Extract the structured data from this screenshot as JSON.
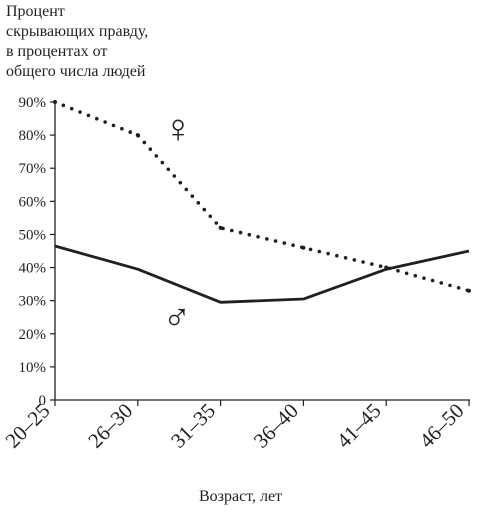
{
  "chart_data": {
    "type": "line",
    "ylabel": "Процент\nскрывающих правду,\nв процентах от\nобщего числа людей",
    "xlabel": "Возраст, лет",
    "categories": [
      "20–25",
      "26–30",
      "31–35",
      "36–40",
      "41–45",
      "46–50"
    ],
    "y_ticks": [
      "0",
      "10%",
      "20%",
      "30%",
      "40%",
      "50%",
      "60%",
      "70%",
      "80%",
      "90%"
    ],
    "ylim": [
      0,
      90
    ],
    "grid": false,
    "series": [
      {
        "symbol": "♀",
        "style": "dotted",
        "values": [
          90,
          80,
          52,
          46,
          40,
          33
        ]
      },
      {
        "symbol": "♂",
        "style": "solid",
        "values": [
          46.5,
          39.5,
          29.5,
          30.5,
          39.5,
          45
        ]
      }
    ],
    "colors": {
      "ink": "#231f20"
    }
  }
}
